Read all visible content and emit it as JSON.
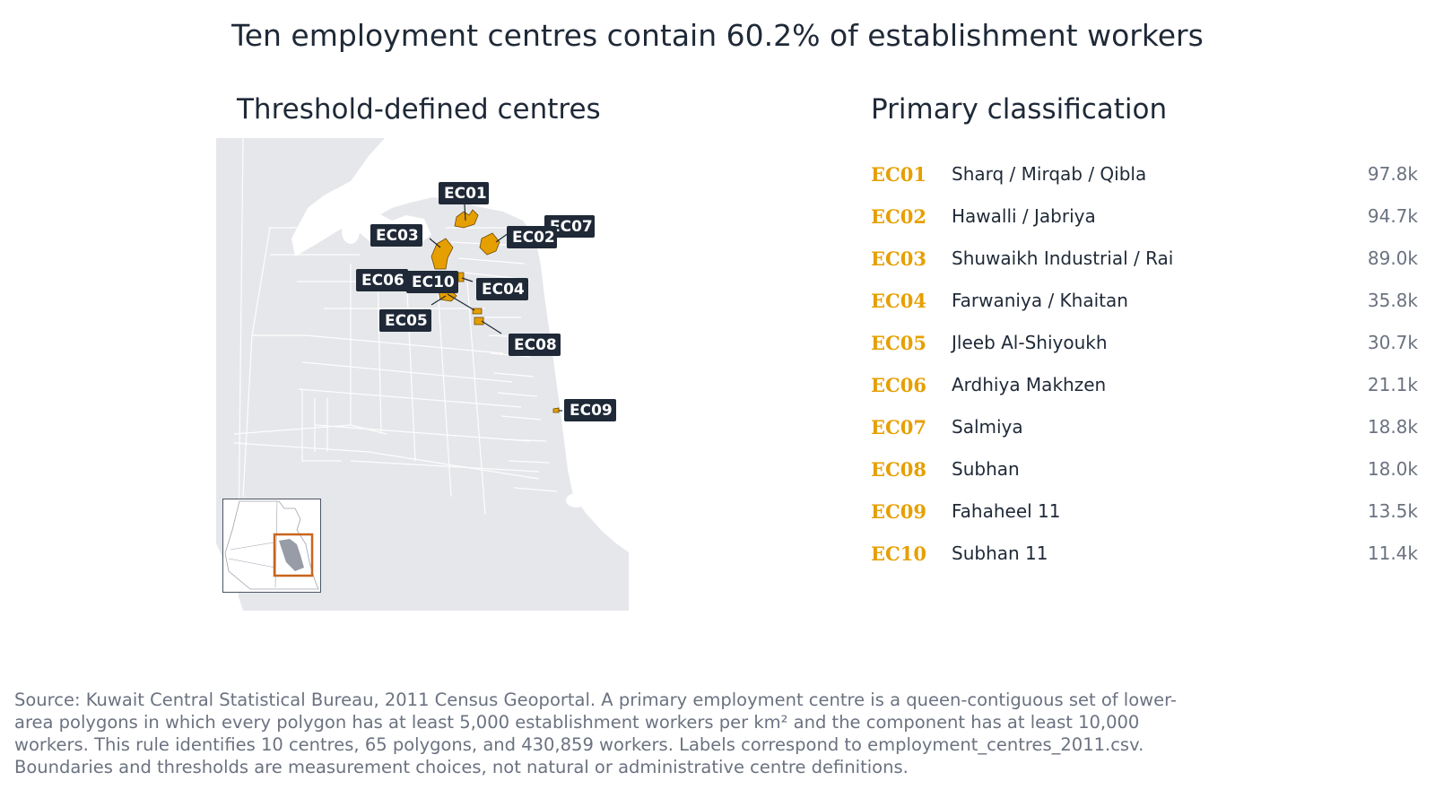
{
  "title": "Ten employment centres contain 60.2% of establishment workers",
  "map": {
    "title": "Threshold-defined centres",
    "land_color": "#e6e7ea",
    "road_color": "#ffffff",
    "centre_color": "#e69f00",
    "label_bg": "#1f2937",
    "inset_frame_color": "#c8651b",
    "labels": [
      "EC01",
      "EC02",
      "EC03",
      "EC04",
      "EC05",
      "EC06",
      "EC07",
      "EC08",
      "EC09",
      "EC10"
    ]
  },
  "classification": {
    "title": "Primary classification",
    "rows": [
      {
        "code": "EC01",
        "name": "Sharq / Mirqab / Qibla",
        "value": "97.8k"
      },
      {
        "code": "EC02",
        "name": "Hawalli / Jabriya",
        "value": "94.7k"
      },
      {
        "code": "EC03",
        "name": "Shuwaikh Industrial / Rai",
        "value": "89.0k"
      },
      {
        "code": "EC04",
        "name": "Farwaniya / Khaitan",
        "value": "35.8k"
      },
      {
        "code": "EC05",
        "name": "Jleeb Al-Shiyoukh",
        "value": "30.7k"
      },
      {
        "code": "EC06",
        "name": "Ardhiya Makhzen",
        "value": "21.1k"
      },
      {
        "code": "EC07",
        "name": "Salmiya",
        "value": "18.8k"
      },
      {
        "code": "EC08",
        "name": "Subhan",
        "value": "18.0k"
      },
      {
        "code": "EC09",
        "name": "Fahaheel 11",
        "value": "13.5k"
      },
      {
        "code": "EC10",
        "name": "Subhan 11",
        "value": "11.4k"
      }
    ]
  },
  "source": "Source: Kuwait Central Statistical Bureau, 2011 Census Geoportal. A primary employment centre is a queen-contiguous set of lower-area polygons in which every polygon has at least 5,000 establishment workers per km² and the component has at least 10,000 workers. This rule identifies 10 centres, 65 polygons, and 430,859 workers. Labels correspond to employment_centres_2011.csv. Boundaries and thresholds are measurement choices, not natural or administrative centre definitions."
}
